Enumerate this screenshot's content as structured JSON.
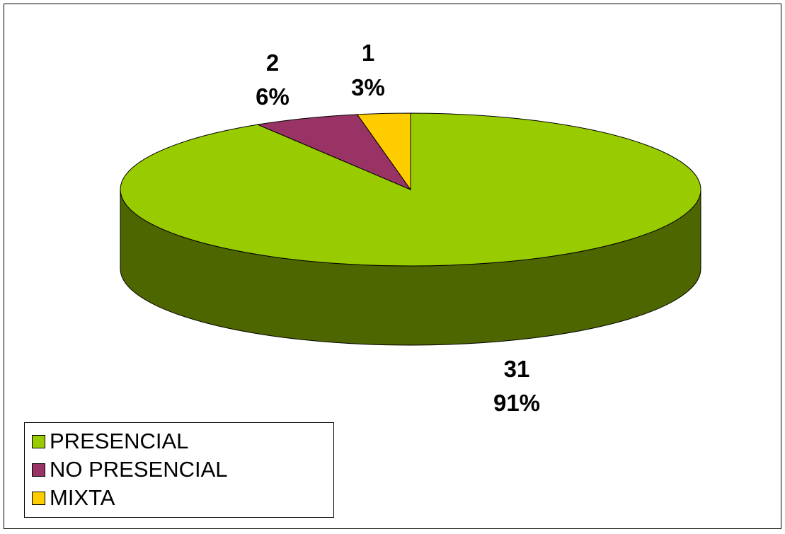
{
  "chart_data": {
    "type": "pie",
    "categories": [
      "PRESENCIAL",
      "NO PRESENCIAL",
      "MIXTA"
    ],
    "values": [
      31,
      2,
      1
    ],
    "percent_labels": [
      "91%",
      "6%",
      "3%"
    ],
    "colors": [
      "#99CC00",
      "#993366",
      "#FFCC00"
    ],
    "side_color": "#4D6600",
    "three_d": true,
    "legend": {
      "position": "bottom-left"
    }
  }
}
